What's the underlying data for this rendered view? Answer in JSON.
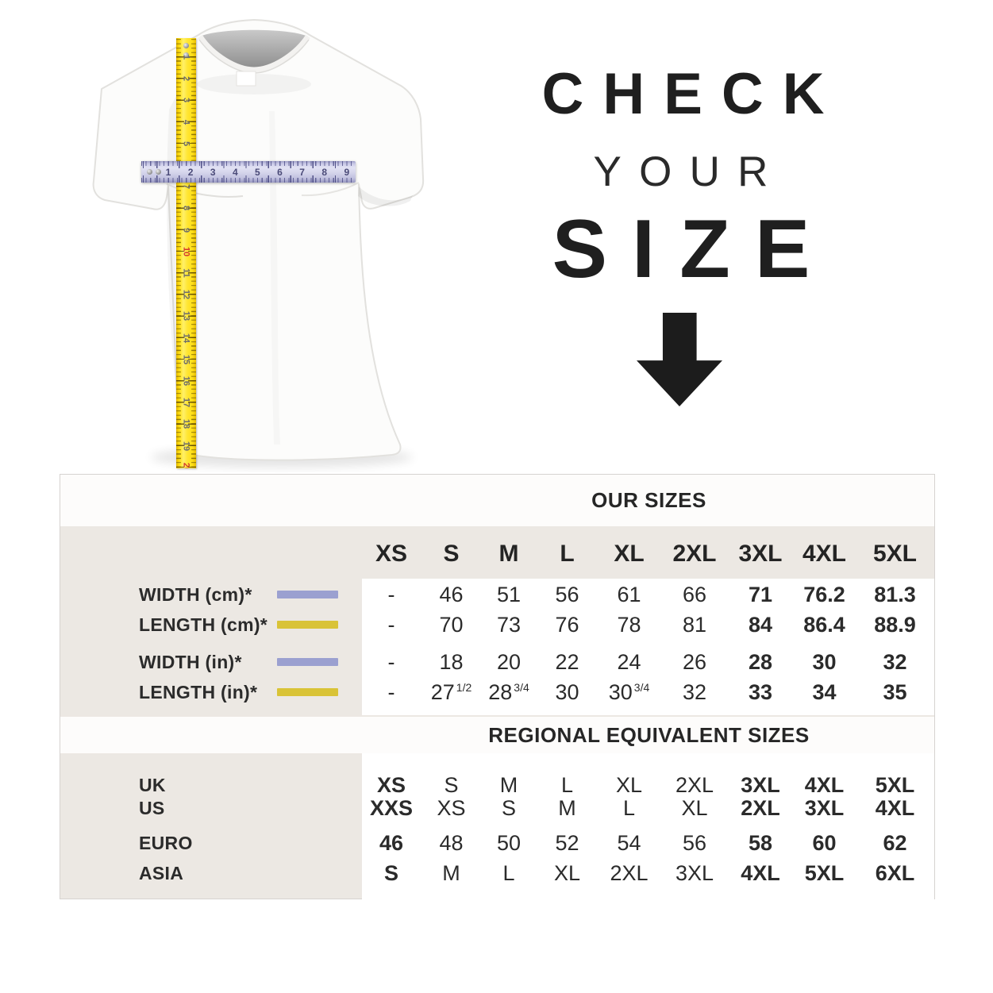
{
  "headline": {
    "line1": "CHECK",
    "line2": "YOUR",
    "line3": "SIZE"
  },
  "size_chart": {
    "our_sizes_title": "OUR SIZES",
    "regional_title": "REGIONAL EQUIVALENT SIZES",
    "columns": [
      "XS",
      "S",
      "M",
      "L",
      "XL",
      "2XL",
      "3XL",
      "4XL",
      "5XL"
    ],
    "measurement_rows": [
      {
        "label": "WIDTH (cm)*",
        "swatch_color": "#9ba0d0",
        "values": [
          "-",
          "46",
          "51",
          "56",
          "61",
          "66",
          "71",
          "76.2",
          "81.3"
        ],
        "bold_cols": [
          6,
          7,
          8
        ]
      },
      {
        "label": "LENGTH (cm)*",
        "swatch_color": "#d9c337",
        "values": [
          "-",
          "70",
          "73",
          "76",
          "78",
          "81",
          "84",
          "86.4",
          "88.9"
        ],
        "bold_cols": [
          6,
          7,
          8
        ]
      },
      {
        "label": "WIDTH (in)*",
        "swatch_color": "#9ba0d0",
        "values": [
          "-",
          "18",
          "20",
          "22",
          "24",
          "26",
          "28",
          "30",
          "32"
        ],
        "bold_cols": [
          6,
          7,
          8
        ]
      },
      {
        "label": "LENGTH (in)*",
        "swatch_color": "#d9c337",
        "values": [
          "-",
          "27^1/2",
          "28^3/4",
          "30",
          "30^3/4",
          "32",
          "33",
          "34",
          "35"
        ],
        "bold_cols": [
          6,
          7,
          8
        ]
      }
    ],
    "regional_rows": [
      {
        "label": "UK",
        "values": [
          "XS",
          "S",
          "M",
          "L",
          "XL",
          "2XL",
          "3XL",
          "4XL",
          "5XL"
        ],
        "bold_cols": [
          0,
          6,
          7,
          8
        ]
      },
      {
        "label": "US",
        "values": [
          "XXS",
          "XS",
          "S",
          "M",
          "L",
          "XL",
          "2XL",
          "3XL",
          "4XL"
        ],
        "bold_cols": [
          0,
          6,
          7,
          8
        ]
      },
      {
        "label": "EURO",
        "values": [
          "46",
          "48",
          "50",
          "52",
          "54",
          "56",
          "58",
          "60",
          "62"
        ],
        "bold_cols": [
          0,
          6,
          7,
          8
        ]
      },
      {
        "label": "ASIA",
        "values": [
          "S",
          "M",
          "L",
          "XL",
          "2XL",
          "3XL",
          "4XL",
          "5XL",
          "6XL"
        ],
        "bold_cols": [
          0,
          6,
          7,
          8
        ]
      }
    ]
  },
  "rulers": {
    "vertical_tape": {
      "tape_color": "#ffe01a",
      "unit_numbers": [
        "1",
        "2",
        "3",
        "4",
        "5",
        "6",
        "7",
        "8",
        "9",
        "10",
        "11",
        "12",
        "13",
        "14",
        "15",
        "16",
        "17",
        "18",
        "19",
        "20"
      ],
      "red_numbers": [
        "10",
        "20"
      ]
    },
    "horizontal_tape": {
      "tape_color": "#cdcdea",
      "unit_numbers": [
        "1",
        "2",
        "3",
        "4",
        "5",
        "6",
        "7",
        "8",
        "9"
      ]
    }
  },
  "colors": {
    "chart_background": "#ece8e3",
    "band_background": "#fdfcfb",
    "width_swatch": "#9ba0d0",
    "length_swatch": "#d9c337",
    "text": "#262626"
  }
}
